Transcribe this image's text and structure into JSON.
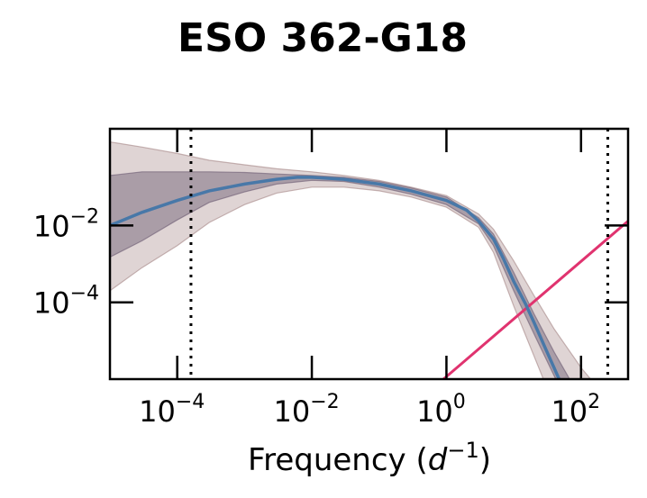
{
  "chart_data": {
    "type": "line",
    "title": "ESO 362-G18",
    "xlabel": "Frequency (d⁻¹)",
    "ylabel": "",
    "xscale": "log",
    "yscale": "log",
    "xlim": [
      1e-05,
      500
    ],
    "ylim": [
      1e-06,
      3.3
    ],
    "xticks": [
      {
        "value": 0.0001,
        "base": "10",
        "exp": "−4"
      },
      {
        "value": 0.01,
        "base": "10",
        "exp": "−2"
      },
      {
        "value": 1,
        "base": "10",
        "exp": "0"
      },
      {
        "value": 100,
        "base": "10",
        "exp": "2"
      }
    ],
    "yticks": [
      {
        "value": 0.01,
        "base": "10",
        "exp": "−2"
      },
      {
        "value": 0.0001,
        "base": "10",
        "exp": "−4"
      }
    ],
    "vlines": [
      0.00016,
      250
    ],
    "grid": false,
    "legend": "none",
    "series": [
      {
        "role": "median",
        "color": "#4878a8",
        "x": [
          1e-05,
          3e-05,
          0.0001,
          0.0003,
          0.001,
          0.003,
          0.006,
          0.01,
          0.03,
          0.1,
          0.3,
          1,
          2,
          3,
          5,
          7,
          10,
          15,
          20,
          30,
          50
        ],
        "y": [
          0.01,
          0.022,
          0.045,
          0.08,
          0.12,
          0.16,
          0.18,
          0.18,
          0.16,
          0.12,
          0.08,
          0.045,
          0.025,
          0.013,
          0.0045,
          0.0014,
          0.00035,
          9e-05,
          3e-05,
          6e-06,
          8e-07
        ]
      },
      {
        "role": "inner-band",
        "color": "#6b5a72",
        "x": [
          1e-05,
          3e-05,
          0.0001,
          0.0003,
          0.001,
          0.003,
          0.01,
          0.03,
          0.1,
          0.3,
          1,
          3,
          5,
          10,
          20,
          40,
          80
        ],
        "upper": [
          0.2,
          0.25,
          0.25,
          0.25,
          0.24,
          0.22,
          0.2,
          0.18,
          0.14,
          0.095,
          0.055,
          0.016,
          0.006,
          0.0006,
          5e-05,
          5e-06,
          6e-07
        ],
        "lower": [
          0.0015,
          0.004,
          0.014,
          0.04,
          0.075,
          0.12,
          0.15,
          0.14,
          0.1,
          0.065,
          0.035,
          0.011,
          0.003,
          0.0002,
          1.5e-05,
          1.2e-06,
          1e-07
        ]
      },
      {
        "role": "outer-band",
        "color": "#a48484",
        "x": [
          1e-05,
          3e-05,
          0.0001,
          0.0003,
          0.001,
          0.003,
          0.01,
          0.03,
          0.1,
          0.3,
          1,
          3,
          5,
          10,
          20,
          40,
          100,
          300
        ],
        "upper": [
          1.5,
          1.1,
          0.75,
          0.5,
          0.38,
          0.3,
          0.25,
          0.2,
          0.15,
          0.1,
          0.06,
          0.02,
          0.008,
          0.0012,
          0.00015,
          2e-05,
          2e-06,
          2e-07
        ],
        "lower": [
          0.0002,
          0.0008,
          0.003,
          0.012,
          0.035,
          0.07,
          0.1,
          0.1,
          0.08,
          0.055,
          0.03,
          0.009,
          0.002,
          8e-05,
          4e-06,
          2e-07,
          1e-08,
          1e-09
        ]
      },
      {
        "role": "power-law-line",
        "color": "#e0336f",
        "x": [
          0.05,
          500
        ],
        "y": [
          1.3e-08,
          0.013
        ]
      }
    ]
  }
}
